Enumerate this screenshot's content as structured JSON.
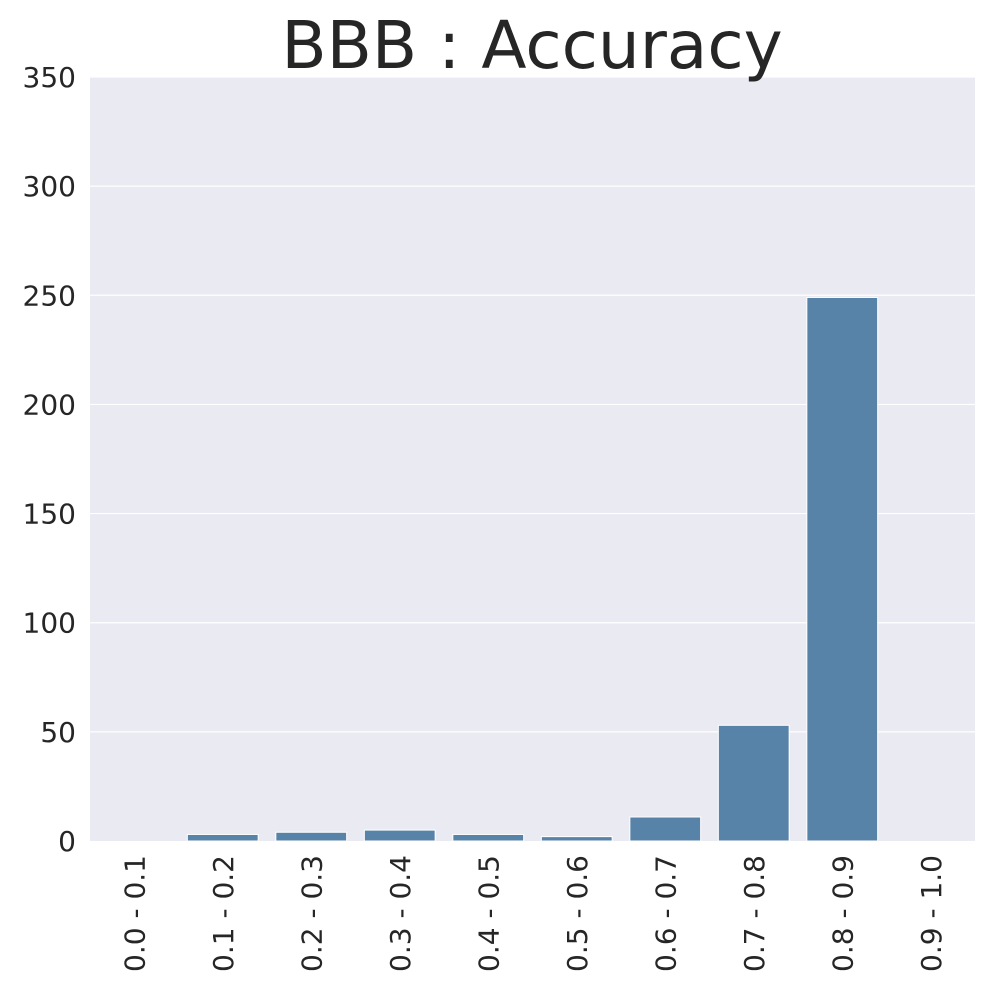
{
  "chart_data": {
    "type": "bar",
    "title": "BBB : Accuracy",
    "xlabel": "",
    "ylabel": "",
    "categories": [
      "0.0 - 0.1",
      "0.1 - 0.2",
      "0.2 - 0.3",
      "0.3 - 0.4",
      "0.4 - 0.5",
      "0.5 - 0.6",
      "0.6 - 0.7",
      "0.7 - 0.8",
      "0.8 - 0.9",
      "0.9 - 1.0"
    ],
    "values": [
      0,
      3,
      4,
      5,
      3,
      2,
      11,
      53,
      249,
      0
    ],
    "ylim": [
      0,
      350
    ],
    "yticks": [
      0,
      50,
      100,
      150,
      200,
      250,
      300,
      350
    ],
    "grid": true,
    "bar_color": "#5883a8",
    "background_color": "#eaeaf2"
  }
}
